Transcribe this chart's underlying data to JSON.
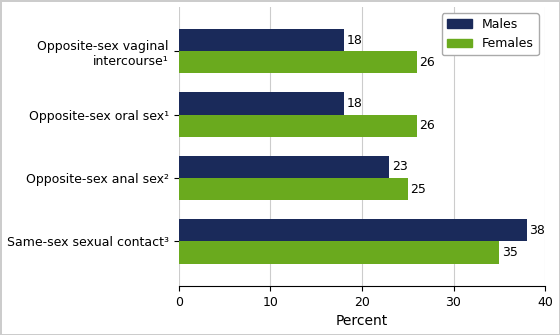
{
  "categories": [
    "Same-sex sexual contact³",
    "Opposite-sex anal sex²",
    "Opposite-sex oral sex¹",
    "Opposite-sex vaginal\nintercourse¹"
  ],
  "males_values": [
    38,
    23,
    18,
    18
  ],
  "females_values": [
    35,
    25,
    26,
    26
  ],
  "male_color": "#1a2a5a",
  "female_color": "#6aaa1e",
  "xlim": [
    0,
    40
  ],
  "xticks": [
    0,
    10,
    20,
    30,
    40
  ],
  "xlabel": "Percent",
  "legend_labels": [
    "Males",
    "Females"
  ],
  "bar_height": 0.35,
  "label_fontsize": 9,
  "tick_fontsize": 9,
  "xlabel_fontsize": 10,
  "legend_fontsize": 9,
  "background_color": "#ffffff",
  "figure_edge_color": "#cccccc"
}
